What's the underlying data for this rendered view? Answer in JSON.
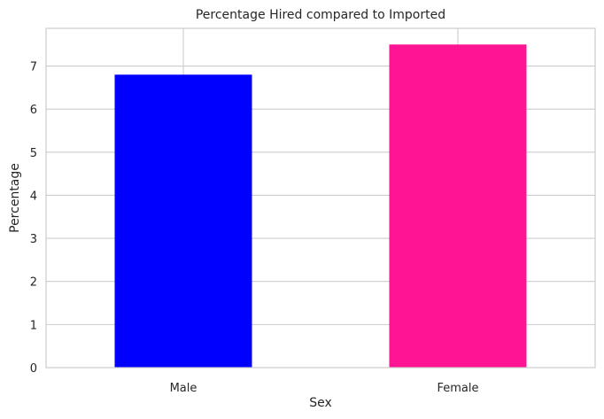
{
  "chart_data": {
    "type": "bar",
    "title": "Percentage Hired compared to Imported",
    "xlabel": "Sex",
    "ylabel": "Percentage",
    "categories": [
      "Male",
      "Female"
    ],
    "values": [
      6.8,
      7.5
    ],
    "colors": [
      "#0000ff",
      "#ff1493"
    ],
    "ylim": [
      0,
      7.875
    ],
    "yticks": [
      0,
      1,
      2,
      3,
      4,
      5,
      6,
      7
    ],
    "grid": true,
    "legend": "none"
  }
}
